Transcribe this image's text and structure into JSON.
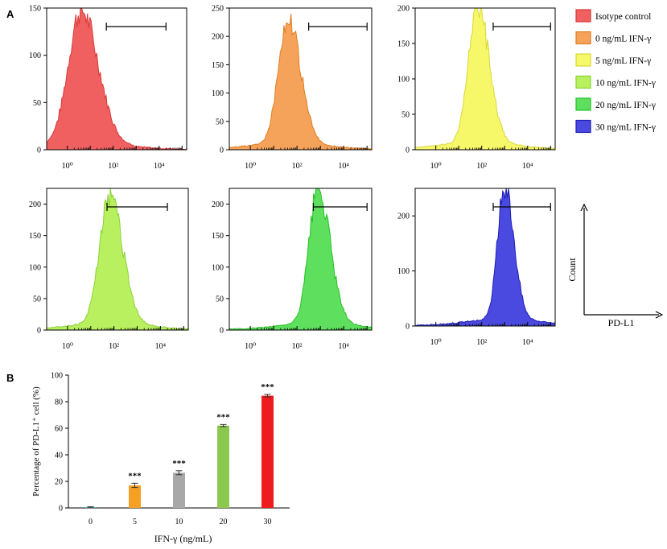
{
  "panels": {
    "a": "A",
    "b": "B"
  },
  "legend": [
    {
      "label": "Isotype control",
      "fill": "#f06060",
      "stroke": "#d93a3a"
    },
    {
      "label": "0 ng/mL IFN-γ",
      "fill": "#f5a35a",
      "stroke": "#e07e22"
    },
    {
      "label": "5 ng/mL IFN-γ",
      "fill": "#f7f76a",
      "stroke": "#d8d83a"
    },
    {
      "label": "10 ng/mL IFN-γ",
      "fill": "#b8f060",
      "stroke": "#8cd238"
    },
    {
      "label": "20 ng/mL IFN-γ",
      "fill": "#5ee05e",
      "stroke": "#28c028"
    },
    {
      "label": "30 ng/mL IFN-γ",
      "fill": "#4a4ae0",
      "stroke": "#1e1eb4"
    }
  ],
  "axis_key": {
    "y": "Count",
    "x": "PD-L1"
  },
  "chart_data": [
    {
      "type": "area",
      "series_index": 0,
      "x_ticks": [
        "10⁰",
        "10²",
        "10⁴"
      ],
      "ylim": [
        0,
        150
      ],
      "y_ticks": [
        0,
        50,
        100,
        150
      ],
      "peak": {
        "log_x": 0.6,
        "count": 140,
        "width": 0.55
      },
      "gate": [
        1.7,
        4.3
      ]
    },
    {
      "type": "area",
      "series_index": 1,
      "x_ticks": [
        "10⁰",
        "10²",
        "10⁴"
      ],
      "ylim": [
        0,
        250
      ],
      "y_ticks": [
        0,
        50,
        100,
        150,
        200,
        250
      ],
      "peak": {
        "log_x": 1.6,
        "count": 220,
        "width": 0.4
      },
      "gate": [
        2.5,
        5.0
      ]
    },
    {
      "type": "area",
      "series_index": 2,
      "x_ticks": [
        "10⁰",
        "10²",
        "10⁴"
      ],
      "ylim": [
        0,
        200
      ],
      "y_ticks": [
        0,
        50,
        100,
        150,
        200
      ],
      "peak": {
        "log_x": 1.8,
        "count": 198,
        "width": 0.38
      },
      "gate": [
        2.5,
        5.0
      ]
    },
    {
      "type": "area",
      "series_index": 3,
      "x_ticks": [
        "10⁰",
        "10²",
        "10⁴"
      ],
      "ylim": [
        0,
        225
      ],
      "y_ticks": [
        0,
        50,
        100,
        150,
        200
      ],
      "peak": {
        "log_x": 1.8,
        "count": 205,
        "width": 0.42
      },
      "gate": [
        1.7,
        4.3
      ]
    },
    {
      "type": "area",
      "series_index": 4,
      "x_ticks": [
        "10⁰",
        "10²",
        "10⁴"
      ],
      "ylim": [
        0,
        225
      ],
      "y_ticks": [
        0,
        50,
        100,
        150,
        200
      ],
      "peak": {
        "log_x": 2.9,
        "count": 215,
        "width": 0.38
      },
      "gate": [
        2.7,
        5.0
      ]
    },
    {
      "type": "area",
      "series_index": 5,
      "x_ticks": [
        "10⁰",
        "10²",
        "10⁴"
      ],
      "ylim": [
        0,
        250
      ],
      "y_ticks": [
        0,
        100,
        200
      ],
      "peak": {
        "log_x": 3.0,
        "count": 243,
        "width": 0.3
      },
      "gate": [
        2.5,
        5.0
      ]
    },
    {
      "type": "bar",
      "categories": [
        "0",
        "5",
        "10",
        "20",
        "30"
      ],
      "values": [
        0.5,
        17,
        26.5,
        62,
        84.5
      ],
      "errors": [
        0.4,
        1.6,
        1.5,
        0.8,
        1.0
      ],
      "colors": [
        "#1a9e9e",
        "#f5a023",
        "#a8a8a8",
        "#8cc850",
        "#ee1c1c"
      ],
      "annotations": [
        "",
        "***",
        "***",
        "***",
        "***"
      ],
      "xlabel": "IFN-γ (ng/mL)",
      "ylabel": "Percentage of PD-L1⁺ cell (%)",
      "ylim": [
        0,
        100
      ],
      "y_ticks": [
        0,
        20,
        40,
        60,
        80,
        100
      ]
    }
  ]
}
